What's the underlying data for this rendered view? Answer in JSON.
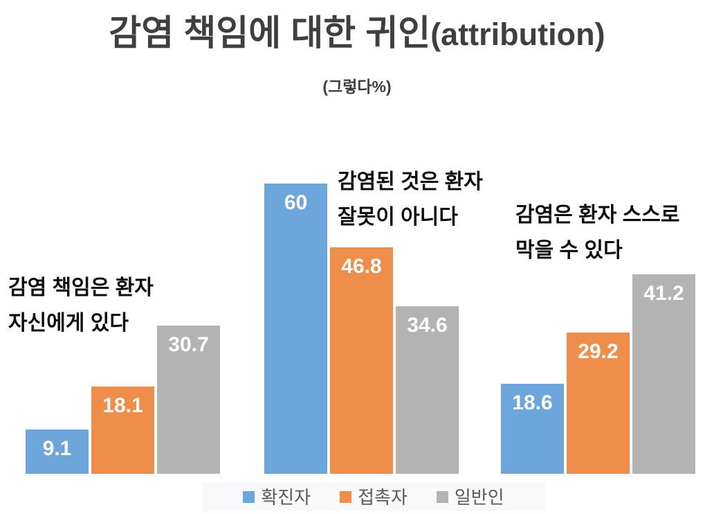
{
  "header": {
    "title_main": "감염 책임에 대한 귀인",
    "title_paren": "(attribution)",
    "subtitle": "(그렇다%)"
  },
  "colors": {
    "title_text": "#3F3F3F",
    "category_text": "#0D0D0D",
    "value_label_text": "#FFFFFF",
    "legend_text": "#595959",
    "legend_background": "#F8F9FA",
    "background": "#FFFFFF"
  },
  "chart_data": {
    "type": "bar",
    "title": "감염 책임에 대한 귀인(attribution)",
    "subtitle": "(그렇다%)",
    "ylim": [
      0,
      60
    ],
    "grid": false,
    "axes_visible": false,
    "legend_position": "bottom",
    "series_names": [
      "확진자",
      "접촉자",
      "일반인"
    ],
    "series_colors": [
      "#6DA6DB",
      "#EF8E4B",
      "#B3B3B3"
    ],
    "categories": [
      "감염 책임은 환자 자신에게 있다",
      "감염된 것은 환자 잘못이 아니다",
      "감염은 환자 스스로 막을 수 있다"
    ],
    "groups": [
      {
        "category": "감염 책임은 환자\n자신에게 있다",
        "values": [
          9.1,
          18.1,
          30.7
        ],
        "labels": [
          "9.1",
          "18.1",
          "30.7"
        ]
      },
      {
        "category": "감염된 것은 환자\n잘못이 아니다",
        "values": [
          60,
          46.8,
          34.6
        ],
        "labels": [
          "60",
          "46.8",
          "34.6"
        ]
      },
      {
        "category": "감염은 환자 스스로\n막을 수 있다",
        "values": [
          18.6,
          29.2,
          41.2
        ],
        "labels": [
          "18.6",
          "29.2",
          "41.2"
        ]
      }
    ],
    "legend": [
      {
        "name": "확진자",
        "color": "#6DA6DB"
      },
      {
        "name": "접촉자",
        "color": "#EF8E4B"
      },
      {
        "name": "일반인",
        "color": "#B3B3B3"
      }
    ]
  }
}
